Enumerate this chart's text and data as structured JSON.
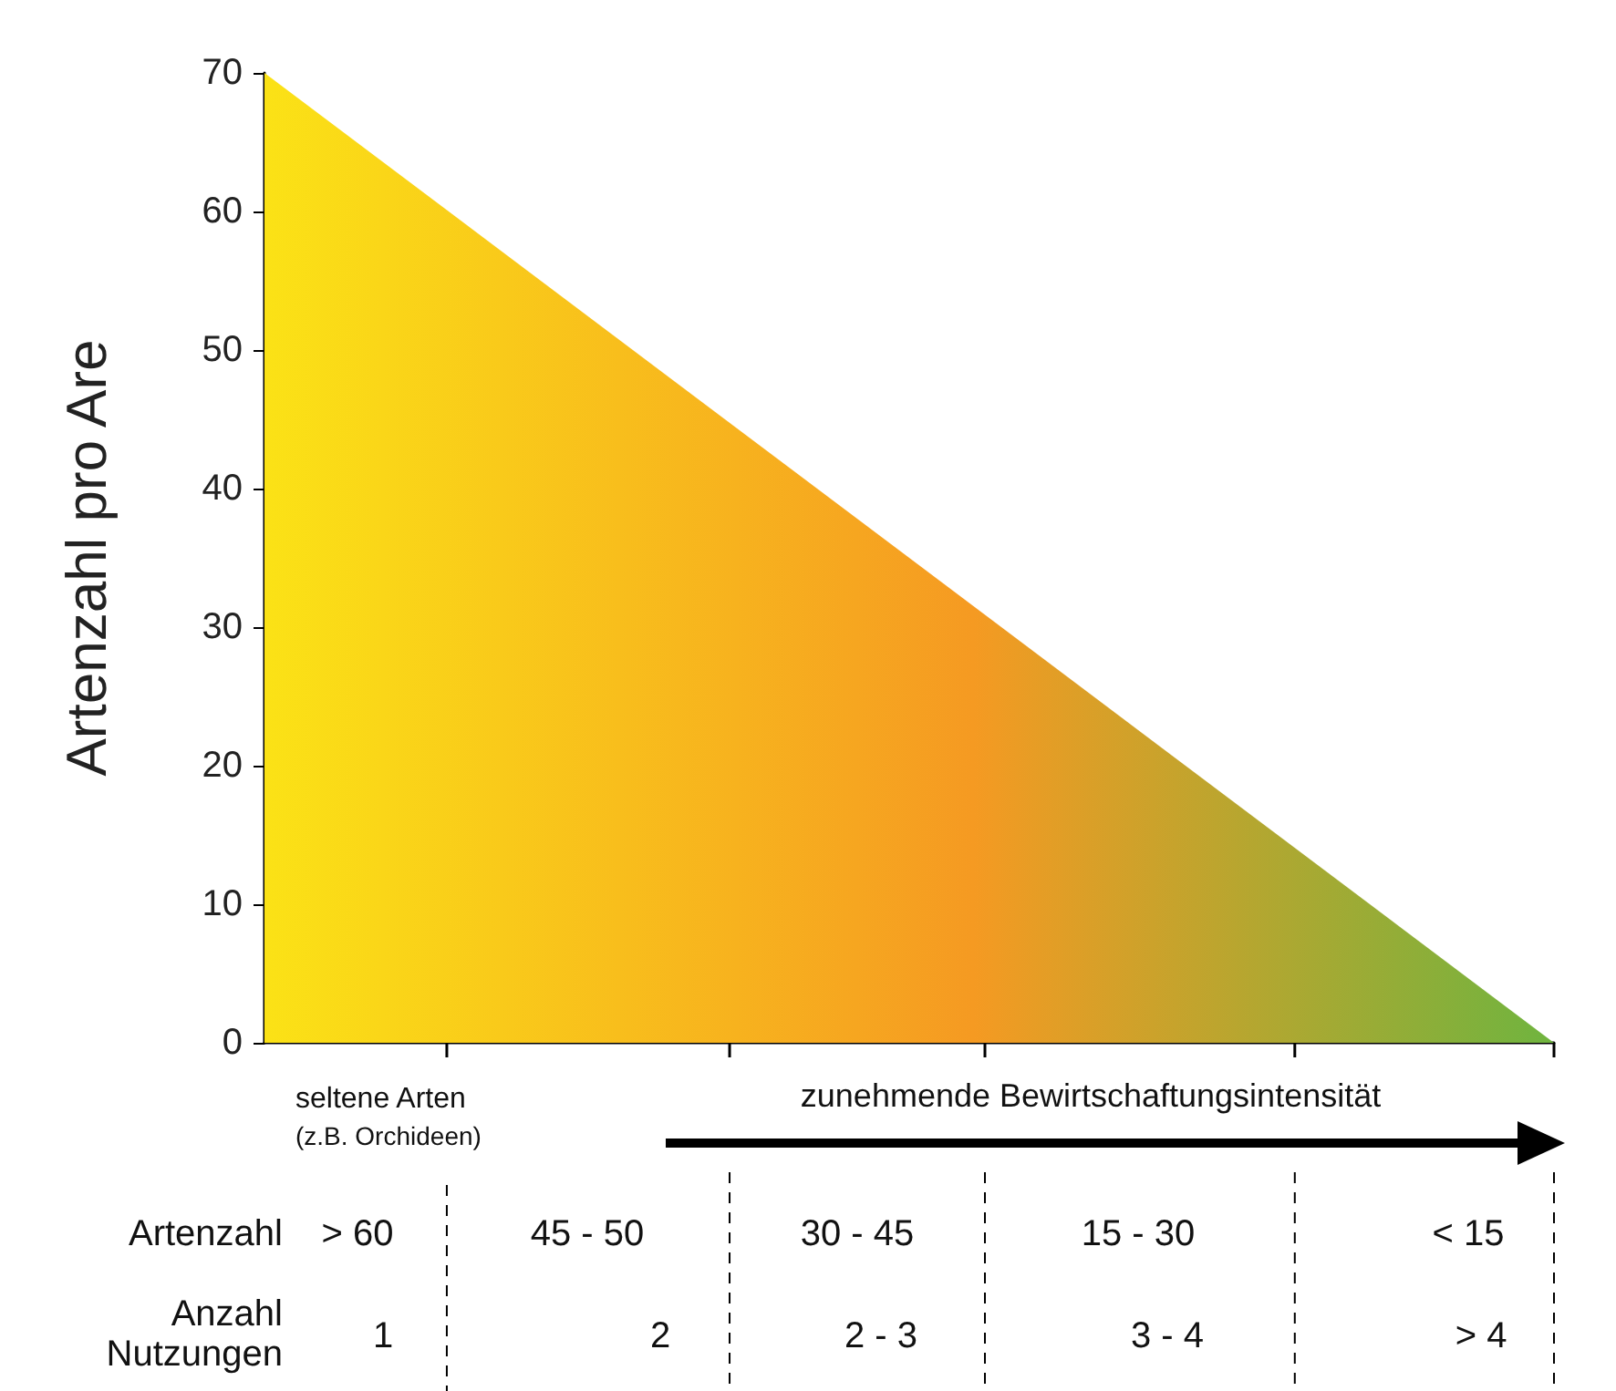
{
  "chart_data": {
    "type": "area",
    "ylabel": "Artenzahl pro Are",
    "categories": [
      null,
      null
    ],
    "series": [
      {
        "color": "#f59a22",
        "values": [
          70,
          0
        ]
      }
    ],
    "colors": [
      "#fbe216",
      "#6fb43f"
    ],
    "ylim": [
      0,
      70
    ],
    "yticks": [
      0,
      10,
      20,
      30,
      40,
      50,
      60,
      70
    ],
    "grid": false,
    "annotations": [
      "seltene Arten",
      "(z.B. Orchideen)",
      "zunehmende Bewirtschaftungsintensität",
      "Artenzahl",
      "> 60",
      "45 - 50",
      "30 - 45",
      "15 - 30",
      "< 15",
      "Anzahl\nNutzungen",
      "1",
      "2",
      "2 - 3",
      "3 - 4",
      "> 4"
    ]
  }
}
